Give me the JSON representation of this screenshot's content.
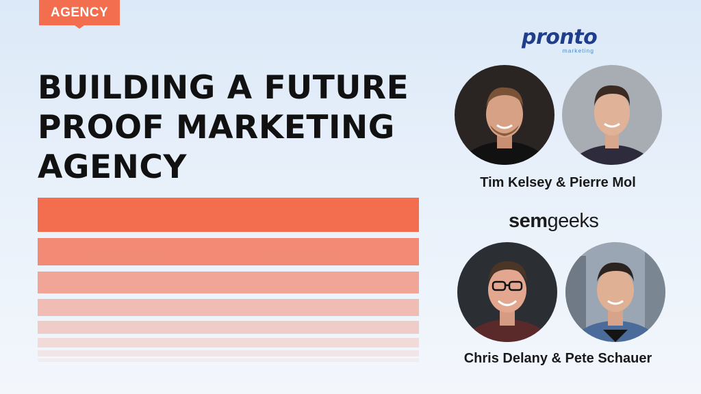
{
  "badge": {
    "label": "AGENCY"
  },
  "headline": {
    "lines": [
      "BUILDING A FUTURE",
      "PROOF MARKETING",
      "AGENCY"
    ]
  },
  "decor": {
    "stripe_color": "#f36d4f",
    "stripe_opacities": [
      1.0,
      0.78,
      0.58,
      0.42,
      0.3,
      0.2,
      0.12,
      0.07
    ]
  },
  "brands": {
    "pronto": {
      "word": "pronto",
      "sub": "marketing",
      "color": "#1f3d8a",
      "sub_color": "#3d8fd8"
    },
    "semgeeks": {
      "bold": "sem",
      "light": "geeks"
    }
  },
  "speakers": {
    "group1": {
      "names": "Tim Kelsey & Pierre Mol"
    },
    "group2": {
      "names": "Chris Delany & Pete Schauer"
    }
  },
  "accent_color": "#f36d4f"
}
